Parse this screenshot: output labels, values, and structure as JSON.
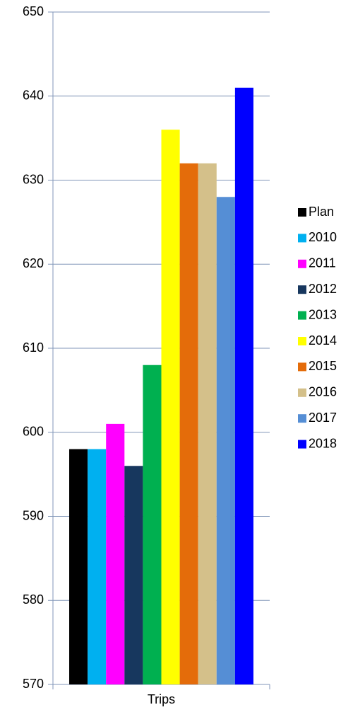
{
  "chart_data": {
    "type": "bar",
    "categories": [
      "Trips"
    ],
    "series": [
      {
        "name": "Plan",
        "color": "#000000",
        "values": [
          598
        ]
      },
      {
        "name": "2010",
        "color": "#00b0f0",
        "values": [
          598
        ]
      },
      {
        "name": "2011",
        "color": "#ff00ff",
        "values": [
          601
        ]
      },
      {
        "name": "2012",
        "color": "#17375e",
        "values": [
          596
        ]
      },
      {
        "name": "2013",
        "color": "#00b050",
        "values": [
          608
        ]
      },
      {
        "name": "2014",
        "color": "#ffff00",
        "values": [
          636
        ]
      },
      {
        "name": "2015",
        "color": "#e46c0a",
        "values": [
          632
        ]
      },
      {
        "name": "2016",
        "color": "#d4c08a",
        "values": [
          632
        ]
      },
      {
        "name": "2017",
        "color": "#558ed5",
        "values": [
          628
        ]
      },
      {
        "name": "2018",
        "color": "#0000ff",
        "values": [
          641
        ]
      }
    ],
    "ylim": [
      570,
      650
    ],
    "yticks": [
      570,
      580,
      590,
      600,
      610,
      620,
      630,
      640,
      650
    ],
    "grid": true,
    "legend": "right"
  }
}
